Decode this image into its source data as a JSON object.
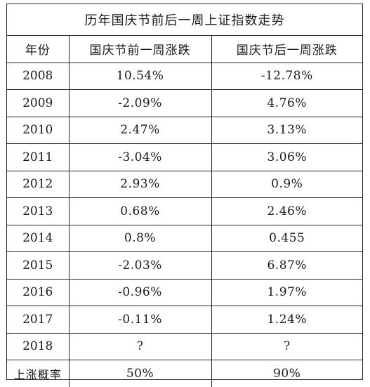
{
  "title": "历年国庆节前后一周上证指数走势",
  "table": {
    "headers": [
      "年份",
      "国庆节前一周涨跌",
      "国庆节后一周涨跌"
    ],
    "rows": [
      {
        "year": "2008",
        "before": "10.54%",
        "after": "-12.78%"
      },
      {
        "year": "2009",
        "before": "-2.09%",
        "after": "4.76%"
      },
      {
        "year": "2010",
        "before": "2.47%",
        "after": "3.13%"
      },
      {
        "year": "2011",
        "before": "-3.04%",
        "after": "3.06%"
      },
      {
        "year": "2012",
        "before": "2.93%",
        "after": "0.9%"
      },
      {
        "year": "2013",
        "before": "0.68%",
        "after": "2.46%"
      },
      {
        "year": "2014",
        "before": "0.8%",
        "after": "0.455"
      },
      {
        "year": "2015",
        "before": "-2.03%",
        "after": "6.87%"
      },
      {
        "year": "2016",
        "before": "-0.96%",
        "after": "1.97%"
      },
      {
        "year": "2017",
        "before": "-0.11%",
        "after": "1.24%"
      },
      {
        "year": "2018",
        "before": "?",
        "after": "?"
      }
    ],
    "summary": {
      "label": "上涨概率",
      "before": "50%",
      "after": "90%"
    }
  }
}
